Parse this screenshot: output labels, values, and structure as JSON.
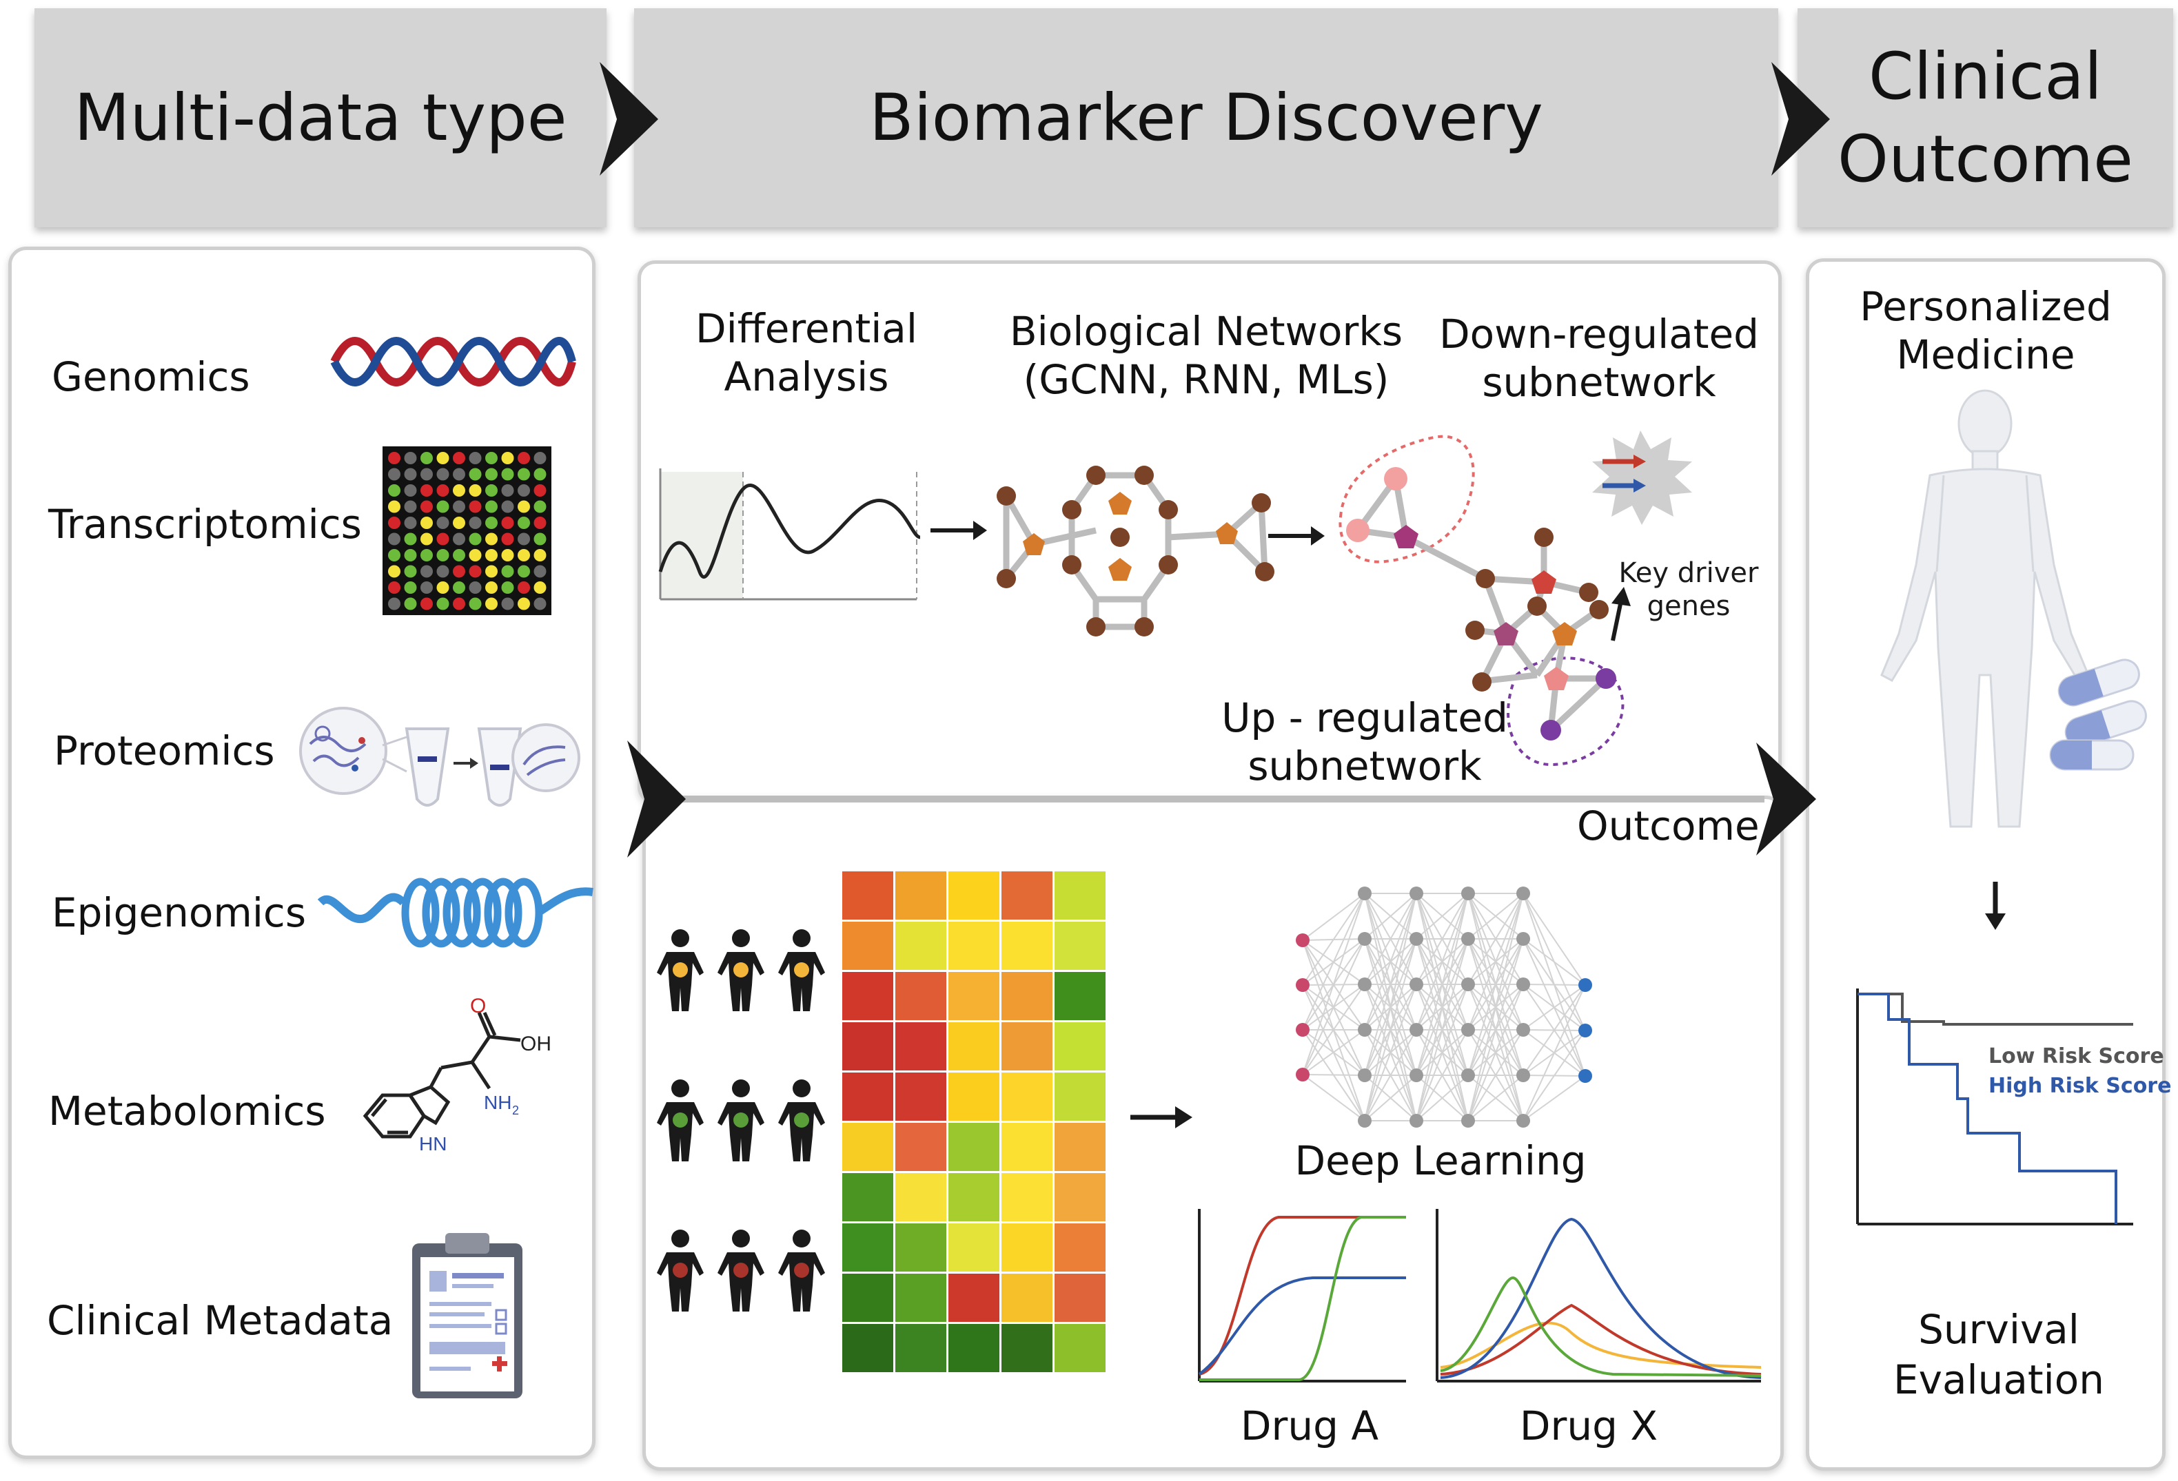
{
  "headers": {
    "multi_data": "Multi-data type",
    "biomarker": "Biomarker Discovery",
    "clinical_line1": "Clinical",
    "clinical_line2": "Outcome"
  },
  "data_types": [
    {
      "label": "Genomics",
      "icon": "dna-helix-icon"
    },
    {
      "label": "Transcriptomics",
      "icon": "microarray-icon"
    },
    {
      "label": "Proteomics",
      "icon": "proteomics-tubes-icon"
    },
    {
      "label": "Epigenomics",
      "icon": "chromatin-coil-icon"
    },
    {
      "label": "Metabolomics",
      "icon": "tryptophan-molecule-icon"
    },
    {
      "label": "Clinical Metadata",
      "icon": "clipboard-icon"
    }
  ],
  "molecule_labels": {
    "o": "O",
    "oh": "OH",
    "nh2": "NH",
    "nh2_sub": "2",
    "hn": "HN"
  },
  "biomarker_top": {
    "differential_line1": "Differential",
    "differential_line2": "Analysis",
    "networks_line1": "Biological Networks",
    "networks_line2": "(GCNN, RNN, MLs)",
    "down_line1": "Down-regulated",
    "down_line2": "subnetwork",
    "key_line1": "Key driver",
    "key_line2": "genes",
    "up_line1": "Up - regulated",
    "up_line2": "subnetwork"
  },
  "biomarker_bottom": {
    "outcome": "Outcome",
    "deep_learning": "Deep Learning",
    "drug_a": "Drug A",
    "drug_x": "Drug X"
  },
  "heatmap": {
    "rows": [
      [
        "#e0592c",
        "#f0a12a",
        "#fcd21c",
        "#e36a34",
        "#c7dd33"
      ],
      [
        "#ee8b2c",
        "#e4e335",
        "#fbdd2e",
        "#fbe02f",
        "#d3e23a"
      ],
      [
        "#d2382a",
        "#e05c34",
        "#f6b133",
        "#ef9b32",
        "#408f1d"
      ],
      [
        "#c9312b",
        "#cf362e",
        "#fbcc20",
        "#ef9b35",
        "#c4e033"
      ],
      [
        "#ce362c",
        "#d0392d",
        "#fbce1e",
        "#fdd52a",
        "#c3dc35"
      ],
      [
        "#f8cd23",
        "#e4663c",
        "#9ac62e",
        "#fbdf31",
        "#f0a43a"
      ],
      [
        "#4b9622",
        "#f7e138",
        "#a7cd2f",
        "#fce134",
        "#f2a83c"
      ],
      [
        "#3f8e20",
        "#70ad26",
        "#e4e339",
        "#fbd626",
        "#eb7f37"
      ],
      [
        "#357d1b",
        "#5aa025",
        "#cd3a2c",
        "#f6c02a",
        "#e0643a"
      ],
      [
        "#2b6a18",
        "#3c8321",
        "#2f7519",
        "#316f1a",
        "#8cbf2a"
      ]
    ]
  },
  "patient_groups": [
    {
      "color": "#f4b63a"
    },
    {
      "color": "#5a9e3a"
    },
    {
      "color": "#a8342b"
    }
  ],
  "colors": {
    "header_bg": "#d4d4d4",
    "arrow": "#1a1a1a",
    "network_node": "#7a4226",
    "network_pent": "#d57a2a",
    "down_pent": "#a3377a",
    "up_pent": "#e46a6a",
    "up_node": "#7a3ca0",
    "low_risk": "#555555",
    "high_risk": "#2f59a8"
  },
  "personalized": {
    "line1": "Personalized",
    "line2": "Medicine"
  },
  "survival": {
    "low": "Low Risk Score",
    "high": "High Risk Score",
    "title_line1": "Survival",
    "title_line2": "Evaluation"
  }
}
